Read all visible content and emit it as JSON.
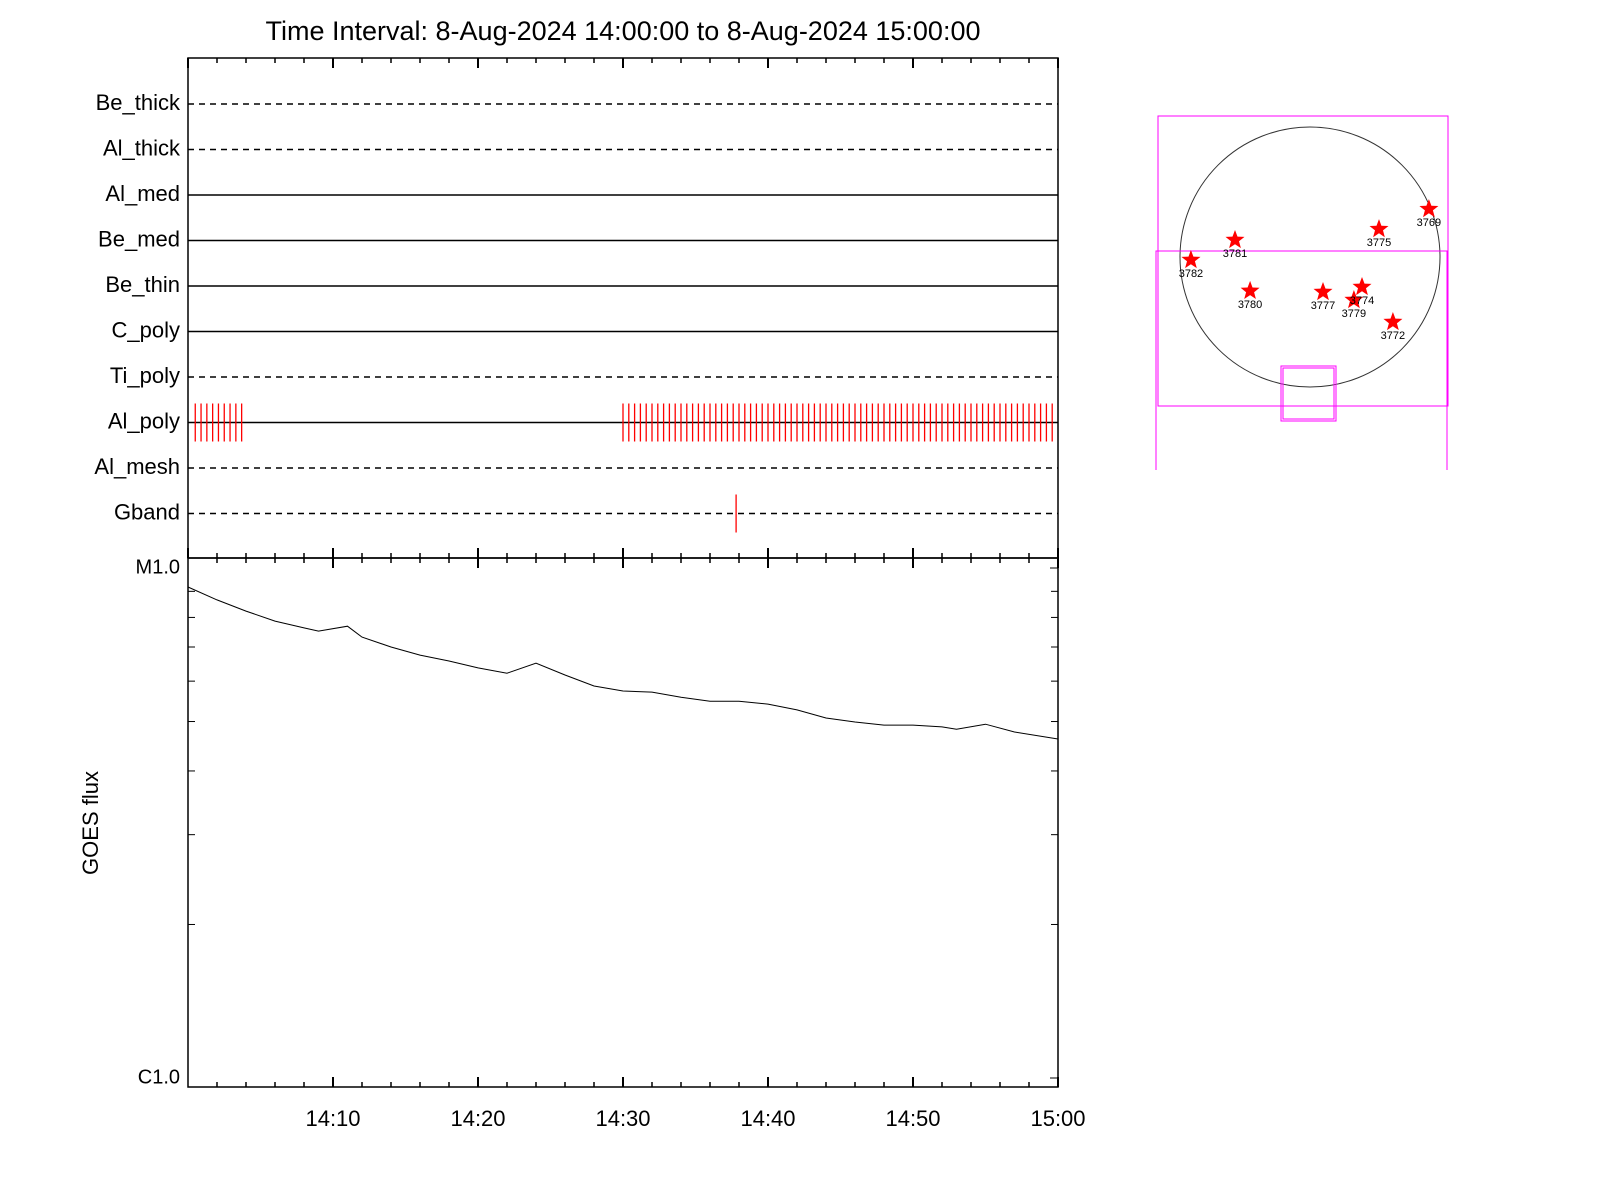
{
  "chart_data": [
    {
      "type": "timeline",
      "title": "Time Interval:  8-Aug-2024 14:00:00 to  8-Aug-2024 15:00:00",
      "categories": [
        "Be_thick",
        "Al_thick",
        "Al_med",
        "Be_med",
        "Be_thin",
        "C_poly",
        "Ti_poly",
        "Al_poly",
        "Al_mesh",
        "Gband"
      ],
      "line_styles": [
        "dashed",
        "dashed",
        "solid",
        "solid",
        "solid",
        "solid",
        "dashed",
        "solid",
        "dashed",
        "dashed"
      ],
      "observations": [
        [],
        [],
        [],
        [],
        [],
        [],
        [],
        [
          0.5,
          0.9,
          1.3,
          1.7,
          2.1,
          2.5,
          2.9,
          3.3,
          3.7,
          30.0,
          30.4,
          30.8,
          31.2,
          31.6,
          32.0,
          32.4,
          32.8,
          33.2,
          33.6,
          34.0,
          34.4,
          34.8,
          35.2,
          35.6,
          36.0,
          36.4,
          36.8,
          37.2,
          37.6,
          38.0,
          38.4,
          38.8,
          39.2,
          39.6,
          40.0,
          40.4,
          40.8,
          41.2,
          41.6,
          42.0,
          42.4,
          42.8,
          43.2,
          43.6,
          44.0,
          44.4,
          44.8,
          45.2,
          45.6,
          46.0,
          46.4,
          46.8,
          47.2,
          47.6,
          48.0,
          48.4,
          48.8,
          49.2,
          49.6,
          50.0,
          50.4,
          50.8,
          51.2,
          51.6,
          52.0,
          52.4,
          52.8,
          53.2,
          53.6,
          54.0,
          54.4,
          54.8,
          55.2,
          55.6,
          56.0,
          56.4,
          56.8,
          57.2,
          57.6,
          58.0,
          58.4,
          58.8,
          59.2,
          59.6
        ],
        [],
        [
          37.8
        ]
      ],
      "color": "#ff0000",
      "xlim": [
        0,
        60
      ],
      "xticks": [
        0,
        10,
        20,
        30,
        40,
        50,
        60
      ],
      "minor_xticks": [
        2,
        4,
        6,
        8,
        12,
        14,
        16,
        18,
        22,
        24,
        26,
        28,
        32,
        34,
        36,
        38,
        42,
        44,
        46,
        48,
        52,
        54,
        56,
        58
      ]
    },
    {
      "type": "line",
      "ylabel": "GOES flux",
      "log_y": true,
      "x": [
        0,
        2,
        4,
        6,
        8,
        9,
        11,
        12,
        14,
        16,
        18,
        20,
        22,
        24,
        26,
        28,
        30,
        32,
        34,
        36,
        38,
        40,
        42,
        44,
        46,
        48,
        50,
        52,
        53,
        55,
        57,
        60
      ],
      "values": [
        9.18e-06,
        8.66e-06,
        8.23e-06,
        7.87e-06,
        7.63e-06,
        7.52e-06,
        7.69e-06,
        7.32e-06,
        7e-06,
        6.75e-06,
        6.57e-06,
        6.37e-06,
        6.22e-06,
        6.51e-06,
        6.17e-06,
        5.87e-06,
        5.74e-06,
        5.71e-06,
        5.58e-06,
        5.48e-06,
        5.48e-06,
        5.41e-06,
        5.27e-06,
        5.08e-06,
        4.99e-06,
        4.92e-06,
        4.92e-06,
        4.88e-06,
        4.83e-06,
        4.94e-06,
        4.77e-06,
        4.62e-06
      ],
      "color": "#000000",
      "xlim": [
        0,
        60
      ],
      "xticks": [
        {
          "value": 10,
          "label": "14:10"
        },
        {
          "value": 20,
          "label": "14:20"
        },
        {
          "value": 30,
          "label": "14:30"
        },
        {
          "value": 40,
          "label": "14:40"
        },
        {
          "value": 50,
          "label": "14:50"
        },
        {
          "value": 60,
          "label": "15:00"
        }
      ],
      "minor_xticks": [
        2,
        4,
        6,
        8,
        12,
        14,
        16,
        18,
        22,
        24,
        26,
        28,
        32,
        34,
        36,
        38,
        42,
        44,
        46,
        48,
        52,
        54,
        56,
        58
      ],
      "ylim": [
        1e-06,
        1e-05
      ],
      "yticks": [
        {
          "value": 1e-06,
          "label": "C1.0"
        },
        {
          "value": 1e-05,
          "label": "M1.0"
        }
      ],
      "minor_yticks": [
        2e-06,
        3e-06,
        4e-06,
        5e-06,
        6e-06,
        7e-06,
        8e-06,
        9e-06
      ]
    },
    {
      "type": "scatter",
      "labels": [
        "3781",
        "3782",
        "3780",
        "3777",
        "3779",
        "3774",
        "3772",
        "3775",
        "3769"
      ],
      "x": [
        -548,
        -870,
        -438,
        95,
        321,
        380,
        606,
        504,
        869
      ],
      "y": [
        124,
        -22,
        -248,
        -256,
        -314,
        -219,
        -475,
        204,
        350
      ],
      "color": "#ff0000"
    }
  ]
}
